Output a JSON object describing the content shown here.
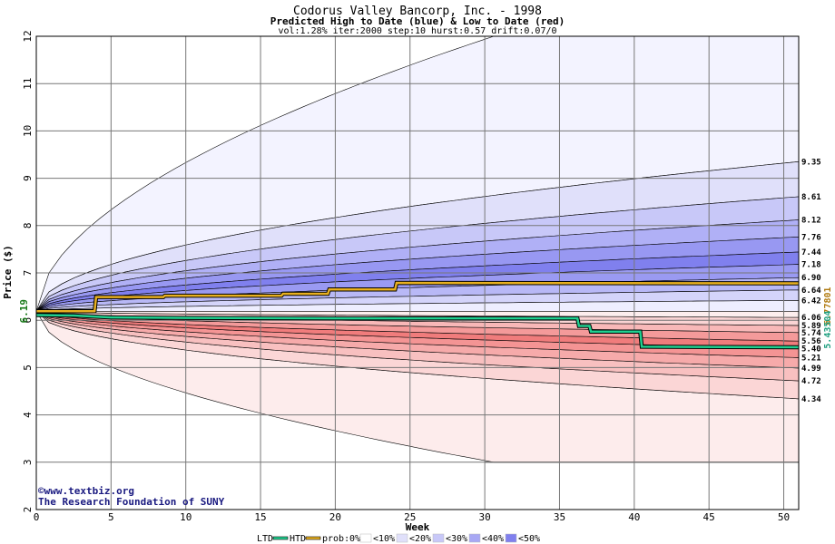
{
  "chart_data": {
    "type": "area",
    "title": "Codorus Valley Bancorp, Inc. - 1998",
    "subtitle": "Predicted High to Date (blue) &  Low to Date (red)",
    "params": "vol:1.28% iter:2000 step:10 hurst:0.57 drift:0.07/0",
    "xlabel": "Week",
    "ylabel": "Price ($)",
    "xlim": [
      0,
      51
    ],
    "ylim": [
      2,
      12
    ],
    "xticks": [
      0,
      5,
      10,
      15,
      20,
      25,
      30,
      35,
      40,
      45,
      50
    ],
    "yticks": [
      2,
      3,
      4,
      5,
      6,
      7,
      8,
      9,
      10,
      11,
      12
    ],
    "start_price": 6.19,
    "start_price_label": "6.19",
    "htd_end_label": "6.77801",
    "ltd_end_label": "5.43504",
    "high_labels": [
      "9.35",
      "8.61",
      "8.12",
      "7.76",
      "7.44",
      "7.18",
      "6.90",
      "6.64",
      "6.42"
    ],
    "low_labels": [
      "6.06",
      "5.89",
      "5.74",
      "5.56",
      "5.40",
      "5.21",
      "4.99",
      "4.72",
      "4.34"
    ],
    "high_bands": [
      {
        "level": "max",
        "end": 12.0,
        "color": "#f3f3ff"
      },
      {
        "level": "0.1",
        "end": 9.35,
        "color": "#e0e0fa"
      },
      {
        "level": "0.2",
        "end": 8.61,
        "color": "#c8c8f8"
      },
      {
        "level": "0.3",
        "end": 8.12,
        "color": "#b0b0f6"
      },
      {
        "level": "0.4",
        "end": 7.76,
        "color": "#9898f2"
      },
      {
        "level": "0.5",
        "end": 7.44,
        "color": "#8080ee"
      },
      {
        "level": "0.6",
        "end": 7.18,
        "color": "#9a9af2"
      },
      {
        "level": "0.7",
        "end": 6.9,
        "color": "#b8b8f6"
      },
      {
        "level": "0.8",
        "end": 6.64,
        "color": "#d4d4fa"
      },
      {
        "level": "0.9",
        "end": 6.42,
        "color": "#eeeeff"
      }
    ],
    "low_bands": [
      {
        "level": "max",
        "end": 3.0,
        "color": "#fdecec"
      },
      {
        "level": "0.1",
        "end": 4.34,
        "color": "#fbd6d6"
      },
      {
        "level": "0.2",
        "end": 4.72,
        "color": "#f8c0c0"
      },
      {
        "level": "0.3",
        "end": 4.99,
        "color": "#f6aaaa"
      },
      {
        "level": "0.4",
        "end": 5.21,
        "color": "#f49494"
      },
      {
        "level": "0.5",
        "end": 5.4,
        "color": "#f07c7c"
      },
      {
        "level": "0.6",
        "end": 5.56,
        "color": "#f49a9a"
      },
      {
        "level": "0.7",
        "end": 5.74,
        "color": "#f8b8b8"
      },
      {
        "level": "0.8",
        "end": 5.89,
        "color": "#fad4d4"
      },
      {
        "level": "0.9",
        "end": 6.06,
        "color": "#fdeeee"
      }
    ],
    "htd_series": {
      "name": "HTD",
      "color": "#e8b020",
      "points": [
        [
          0,
          6.19
        ],
        [
          3.9,
          6.19
        ],
        [
          4.0,
          6.49
        ],
        [
          8.5,
          6.49
        ],
        [
          8.6,
          6.52
        ],
        [
          16.4,
          6.52
        ],
        [
          16.5,
          6.56
        ],
        [
          19.5,
          6.56
        ],
        [
          19.6,
          6.65
        ],
        [
          24.0,
          6.65
        ],
        [
          24.1,
          6.79
        ],
        [
          51,
          6.78
        ]
      ]
    },
    "ltd_series": {
      "name": "LTD",
      "color": "#20d090",
      "points": [
        [
          0,
          6.11
        ],
        [
          2.5,
          6.1
        ],
        [
          5.0,
          6.06
        ],
        [
          10,
          6.05
        ],
        [
          20,
          6.04
        ],
        [
          30,
          6.04
        ],
        [
          36.2,
          6.04
        ],
        [
          36.3,
          5.88
        ],
        [
          37.0,
          5.88
        ],
        [
          37.1,
          5.76
        ],
        [
          40.4,
          5.76
        ],
        [
          40.5,
          5.44
        ],
        [
          51,
          5.43
        ]
      ]
    },
    "legend": {
      "placement": "bottom-center",
      "ltd": "LTD",
      "htd": "HTD",
      "prob_prefix": "prob:",
      "zero": "0%",
      "items": [
        {
          "label": "<10%",
          "color": "#ffffff"
        },
        {
          "label": "<20%",
          "color": "#e0e0fa"
        },
        {
          "label": "<30%",
          "color": "#c8c8f8"
        },
        {
          "label": "<40%",
          "color": "#a8a8f4"
        },
        {
          "label": "<50%",
          "color": "#8080ee"
        }
      ]
    },
    "grid": true
  },
  "footer": {
    "copyright": "©www.textbiz.org",
    "org": "The Research Foundation of SUNY"
  }
}
